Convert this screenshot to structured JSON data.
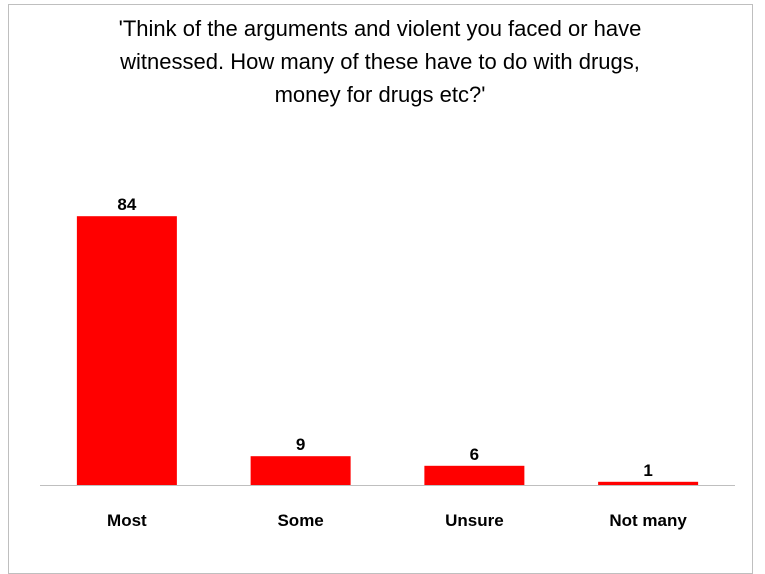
{
  "chart_data": {
    "type": "bar",
    "title": "'Think of the arguments and violent you faced or have witnessed. How many of these have to do with drugs, money for drugs etc?'",
    "categories": [
      "Most",
      "Some",
      "Unsure",
      "Not many"
    ],
    "values": [
      84,
      9,
      6,
      1
    ],
    "xlabel": "",
    "ylabel": "",
    "ylim": [
      0,
      90
    ],
    "grid": false,
    "legend": "none",
    "colors": {
      "bar": "#ff0000",
      "axis": "#bfbfbf",
      "text": "#000000"
    }
  }
}
